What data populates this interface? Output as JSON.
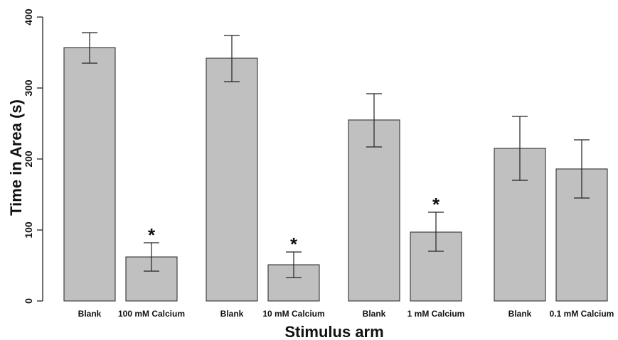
{
  "chart_data": {
    "type": "bar",
    "title": "",
    "xlabel": "Stimulus arm",
    "ylabel": "Time in Area (s)",
    "ylim": [
      0,
      400
    ],
    "yticks": [
      0,
      100,
      200,
      300,
      400
    ],
    "grid": false,
    "legend": "none",
    "bar_color": "#c0c0c0",
    "groups": [
      {
        "bars": [
          {
            "label": "Blank",
            "value": 357,
            "error_low": 335,
            "error_high": 378,
            "annotation": ""
          },
          {
            "label": "100 mM Calcium",
            "value": 62,
            "error_low": 42,
            "error_high": 82,
            "annotation": "*"
          }
        ]
      },
      {
        "bars": [
          {
            "label": "Blank",
            "value": 342,
            "error_low": 309,
            "error_high": 374,
            "annotation": ""
          },
          {
            "label": "10 mM Calcium",
            "value": 51,
            "error_low": 33,
            "error_high": 69,
            "annotation": "*"
          }
        ]
      },
      {
        "bars": [
          {
            "label": "Blank",
            "value": 255,
            "error_low": 217,
            "error_high": 292,
            "annotation": ""
          },
          {
            "label": "1 mM Calcium",
            "value": 97,
            "error_low": 70,
            "error_high": 125,
            "annotation": "*"
          }
        ]
      },
      {
        "bars": [
          {
            "label": "Blank",
            "value": 215,
            "error_low": 170,
            "error_high": 260,
            "annotation": ""
          },
          {
            "label": "0.1 mM Calcium",
            "value": 186,
            "error_low": 145,
            "error_high": 227,
            "annotation": ""
          }
        ]
      }
    ]
  }
}
